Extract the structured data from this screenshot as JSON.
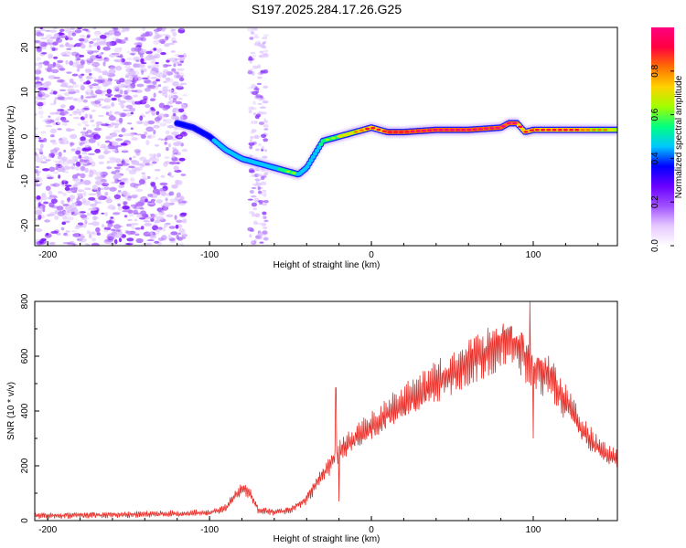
{
  "title": "S197.2025.284.17.26.G25",
  "chart_data": [
    {
      "type": "heatmap",
      "name": "spectrogram",
      "xlabel": "Height of straight line (km)",
      "ylabel": "Frequency (Hz)",
      "xlim": [
        -208,
        152
      ],
      "ylim": [
        -24.5,
        24.5
      ],
      "xticks": [
        -200,
        -100,
        0,
        100
      ],
      "xtick_labels": [
        "-200",
        "-100",
        "0",
        "100"
      ],
      "yticks": [
        -20,
        -10,
        0,
        10,
        20
      ],
      "ytick_labels": [
        "-20",
        "-10",
        "0",
        "10",
        "20"
      ],
      "colorbar": {
        "label": "Normalized spectral amplitude",
        "range": [
          0,
          1
        ],
        "ticks": [
          0,
          0.2,
          0.4,
          0.6,
          0.8
        ],
        "tick_labels": [
          "0.0",
          "0.2",
          "0.4",
          "0.6",
          "0.8"
        ],
        "colors": [
          "#ffffff",
          "#e6c8ff",
          "#a050ff",
          "#6a00ff",
          "#0000ff",
          "#00c8ff",
          "#00ff80",
          "#a0ff00",
          "#ffd200",
          "#ff7000",
          "#ff0040",
          "#ff0080"
        ]
      },
      "signal_track": {
        "height_km": [
          -120,
          -110,
          -100,
          -90,
          -80,
          -70,
          -60,
          -50,
          -45,
          -40,
          -35,
          -30,
          -25,
          -20,
          -15,
          -10,
          -5,
          0,
          10,
          20,
          40,
          60,
          80,
          85,
          90,
          95,
          100,
          120,
          150
        ],
        "frequency_hz": [
          3,
          2,
          0,
          -3,
          -5,
          -6,
          -7,
          -8,
          -8.5,
          -7,
          -4,
          -1,
          -0.5,
          0,
          0.5,
          1,
          1.5,
          2,
          1,
          1,
          1.5,
          1.5,
          2,
          3,
          3,
          1,
          1.5,
          1.5,
          1.5
        ],
        "amplitude": [
          0.35,
          0.35,
          0.4,
          0.45,
          0.45,
          0.45,
          0.5,
          0.6,
          0.5,
          0.45,
          0.5,
          0.55,
          0.6,
          0.65,
          0.7,
          0.75,
          0.8,
          0.85,
          0.9,
          0.9,
          0.92,
          0.95,
          0.92,
          0.95,
          0.9,
          0.85,
          0.9,
          0.85,
          0.7
        ]
      },
      "noise_region_km": [
        -208,
        -115
      ]
    },
    {
      "type": "line",
      "name": "snr",
      "xlabel": "Height of straight line (km)",
      "ylabel": "SNR (10 * v/v)",
      "xlim": [
        -208,
        152
      ],
      "ylim": [
        0,
        800
      ],
      "xticks": [
        -200,
        -100,
        0,
        100
      ],
      "xtick_labels": [
        "-200",
        "-100",
        "0",
        "100"
      ],
      "yticks": [
        0,
        200,
        400,
        600,
        800
      ],
      "ytick_labels": [
        "0",
        "200",
        "400",
        "600",
        "800"
      ],
      "color": "#e8302a",
      "envelope": {
        "x": [
          -208,
          -150,
          -100,
          -90,
          -80,
          -75,
          -70,
          -60,
          -50,
          -40,
          -30,
          -20,
          -10,
          0,
          20,
          40,
          60,
          80,
          90,
          95,
          100,
          110,
          120,
          130,
          140,
          152
        ],
        "y": [
          18,
          22,
          28,
          45,
          120,
          100,
          40,
          30,
          40,
          80,
          170,
          250,
          300,
          340,
          430,
          500,
          580,
          650,
          650,
          600,
          560,
          530,
          430,
          330,
          260,
          220
        ]
      },
      "spikes": [
        {
          "x": -22,
          "y": 485
        },
        {
          "x": -20,
          "y": 70
        },
        {
          "x": 98,
          "y": 800
        },
        {
          "x": 100,
          "y": 300
        }
      ]
    }
  ]
}
